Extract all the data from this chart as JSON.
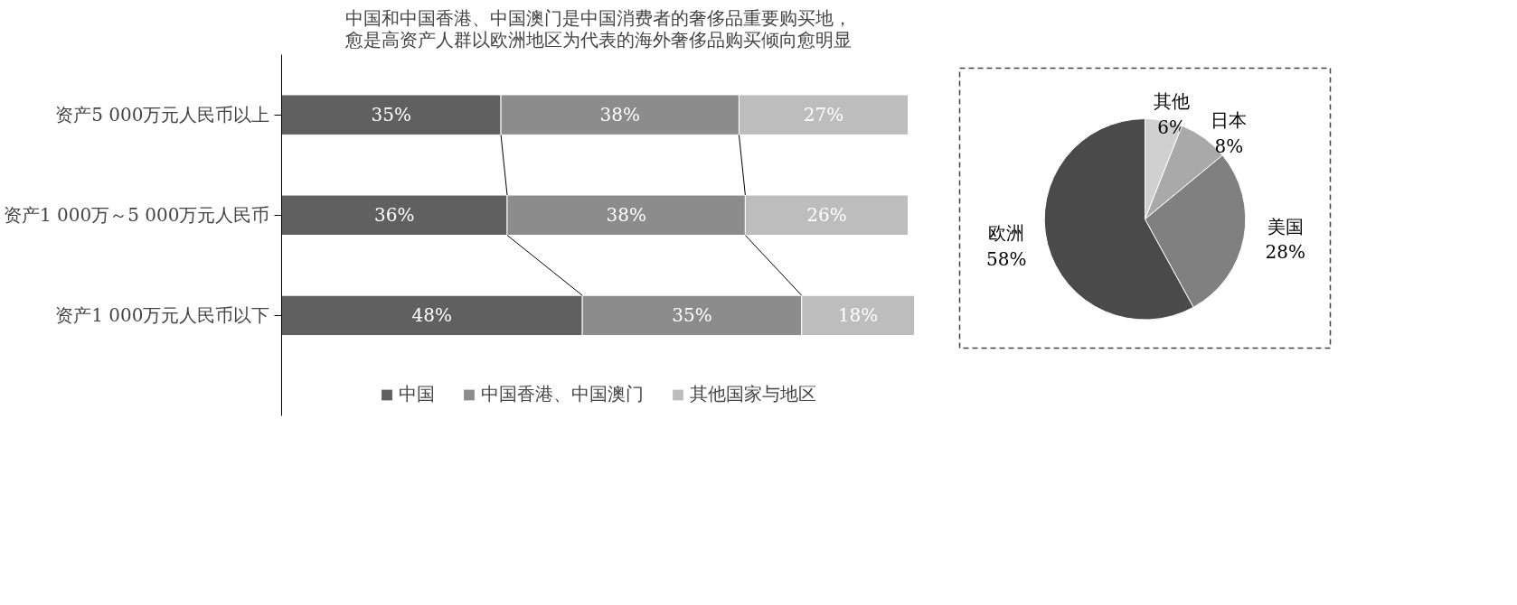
{
  "chart_data": [
    {
      "type": "bar",
      "orientation": "horizontal",
      "stacked": true,
      "title": "中国和中国香港、中国澳门是中国消费者的奢侈品重要购买地，愈是高资产人群以欧洲地区为代表的海外奢侈品购买倾向愈明显",
      "categories": [
        "资产5 000万元人民币以上",
        "资产1 000万～5 000万元人民币",
        "资产1 000万元人民币以下"
      ],
      "series": [
        {
          "name": "中国",
          "color": "#606060",
          "values": [
            35,
            36,
            48
          ],
          "value_labels": [
            "35%",
            "36%",
            "48%"
          ]
        },
        {
          "name": "中国香港、中国澳门",
          "color": "#8c8c8c",
          "values": [
            38,
            38,
            35
          ],
          "value_labels": [
            "38%",
            "38%",
            "35%"
          ]
        },
        {
          "name": "其他国家与地区",
          "color": "#bdbdbd",
          "values": [
            27,
            26,
            18
          ],
          "value_labels": [
            "27%",
            "26%",
            "18%"
          ]
        }
      ],
      "legend": "bottom"
    },
    {
      "type": "pie",
      "categories": [
        "其他",
        "日本",
        "美国",
        "欧洲"
      ],
      "values": [
        6,
        8,
        28,
        58
      ],
      "colors": [
        "#d0d0d0",
        "#a9a9a9",
        "#808080",
        "#4a4a4a"
      ],
      "value_labels": [
        "6%",
        "8%",
        "28%",
        "58%"
      ]
    }
  ]
}
